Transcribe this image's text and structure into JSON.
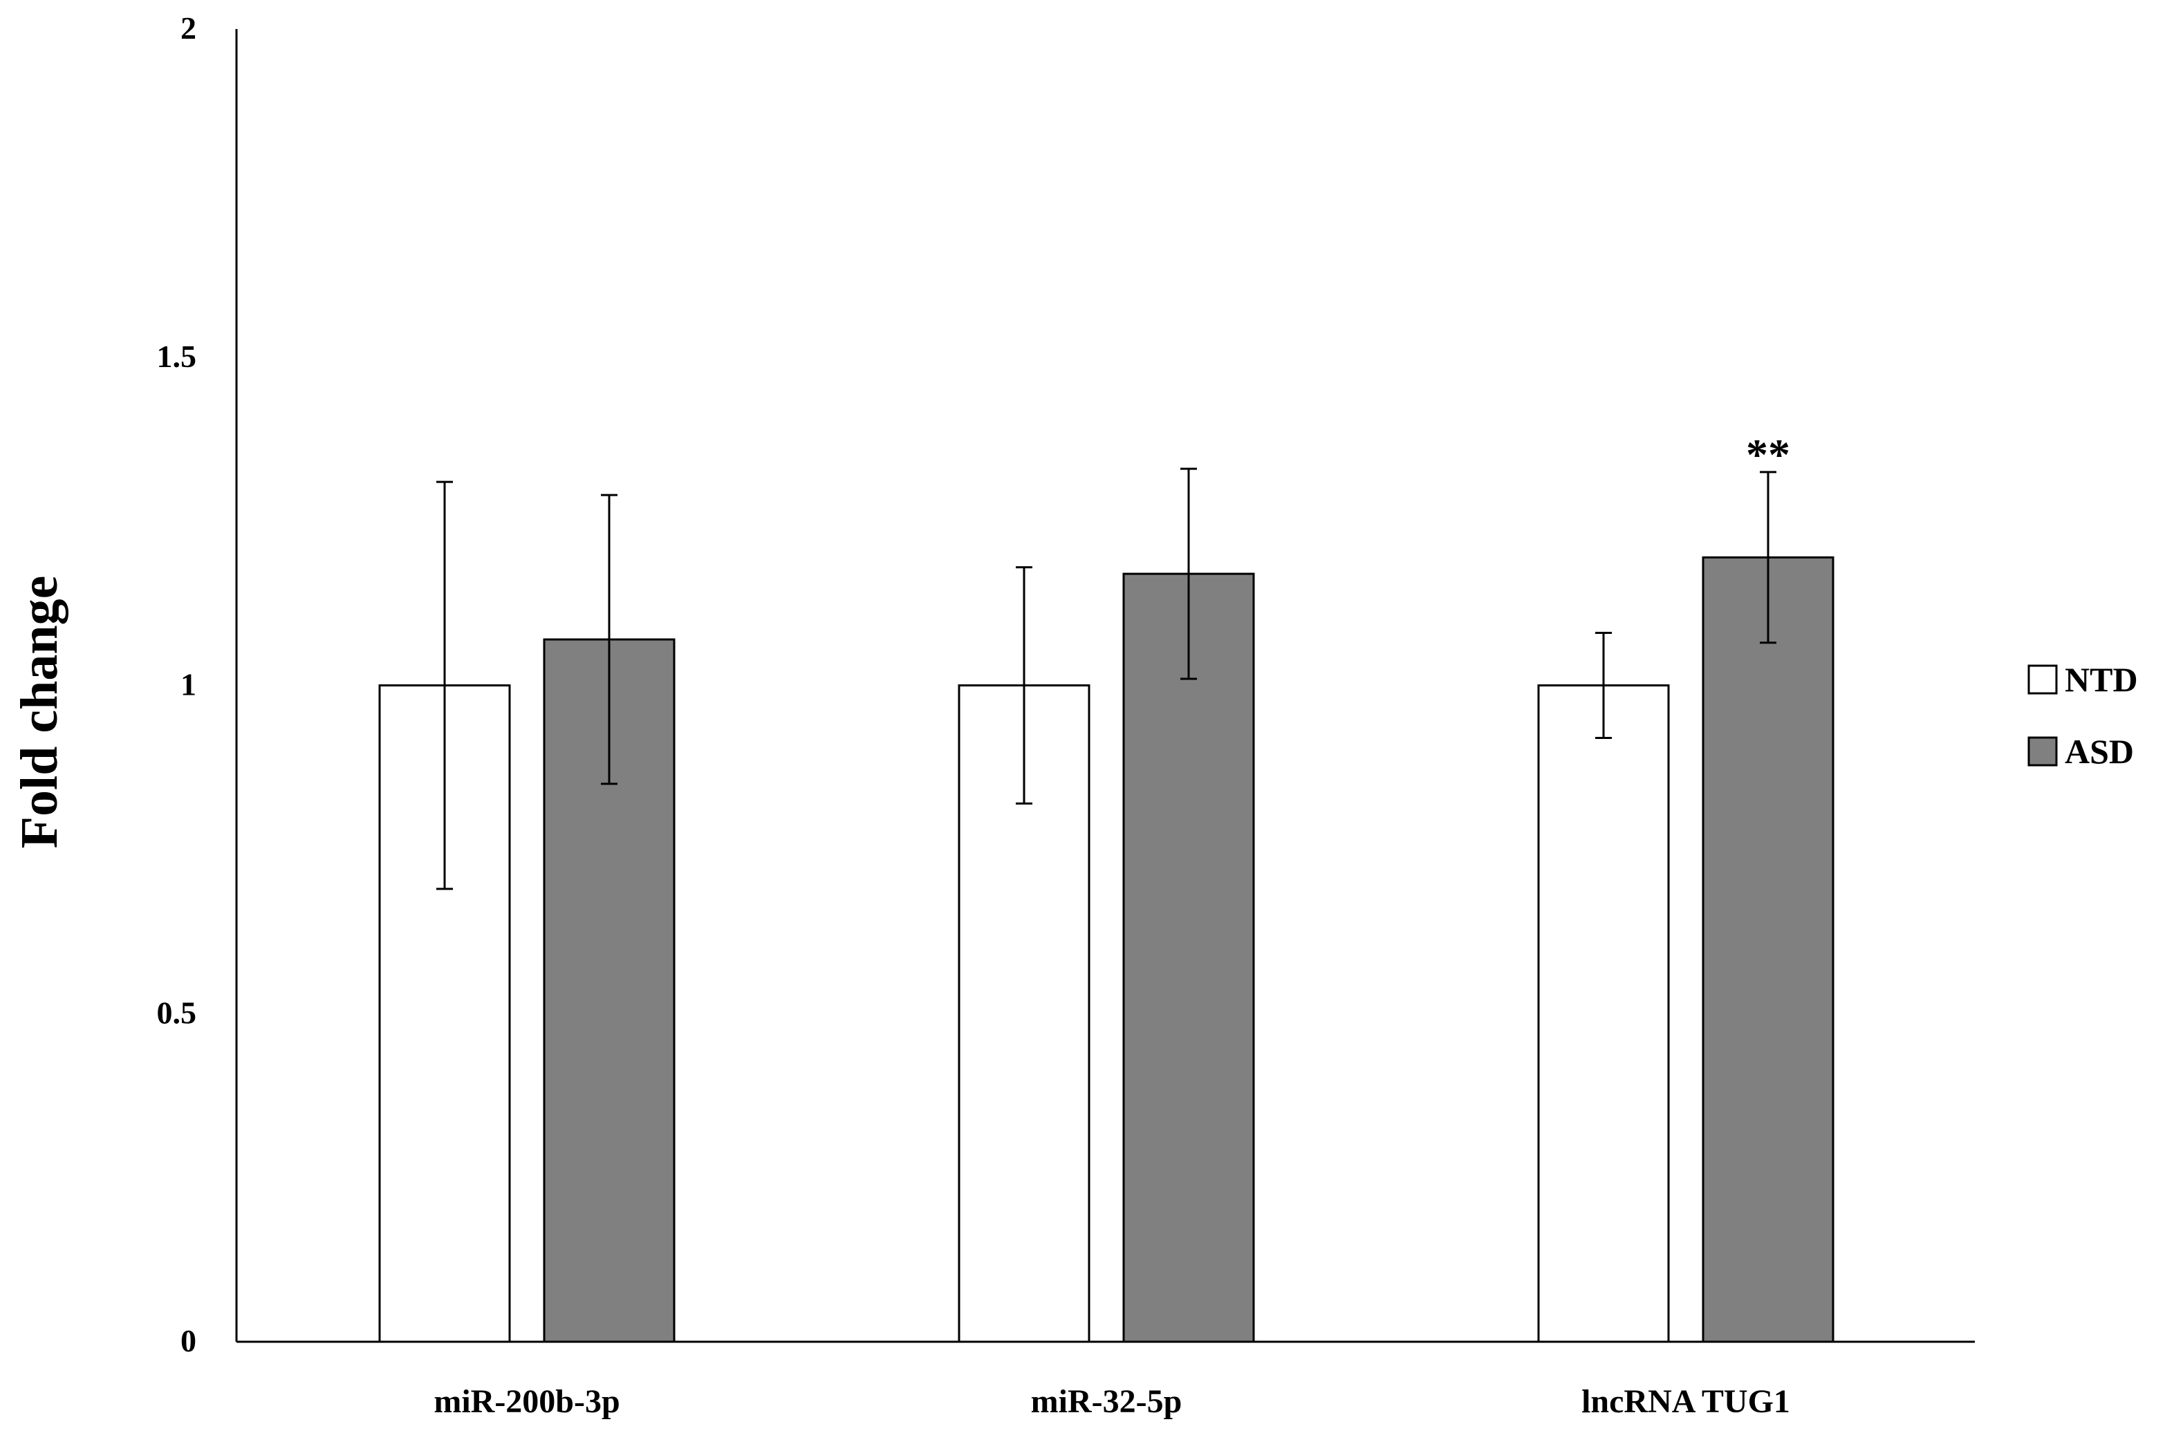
{
  "chart_data": {
    "type": "bar",
    "title": "",
    "xlabel": "",
    "ylabel": "Fold change",
    "ylim": [
      0,
      2
    ],
    "yticks": [
      {
        "value": 0,
        "label": "0"
      },
      {
        "value": 0.5,
        "label": "0.5"
      },
      {
        "value": 1,
        "label": "1"
      },
      {
        "value": 1.5,
        "label": "1.5"
      },
      {
        "value": 2,
        "label": "2"
      }
    ],
    "grid": false,
    "legend_position": "right",
    "categories": [
      "miR-200b-3p",
      "miR-32-5p",
      "lncRNA TUG1"
    ],
    "series": [
      {
        "name": "NTD",
        "color": "#ffffff",
        "values": [
          1.0,
          1.0,
          1.0
        ],
        "errors": [
          0.31,
          0.18,
          0.08
        ]
      },
      {
        "name": "ASD",
        "color": "#808080",
        "values": [
          1.07,
          1.17,
          1.195
        ],
        "errors": [
          0.22,
          0.16,
          0.13
        ]
      }
    ],
    "annotations": [
      {
        "category_index": 2,
        "series_index": 1,
        "text": "**"
      }
    ]
  }
}
